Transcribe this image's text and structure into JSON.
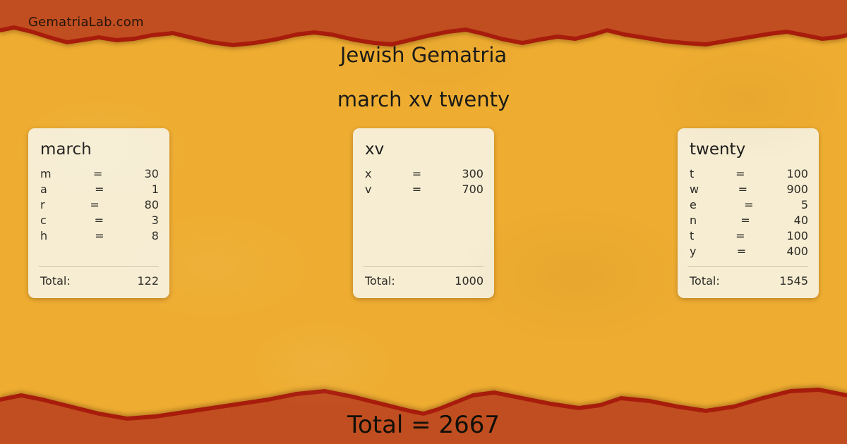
{
  "brand": {
    "label": "GematriaLab.com"
  },
  "header": {
    "system": "Jewish Gematria",
    "phrase": "march xv twenty"
  },
  "row_equals": "=",
  "cards": [
    {
      "word": "march",
      "rows": [
        {
          "letter": "m",
          "value": "30"
        },
        {
          "letter": "a",
          "value": "1"
        },
        {
          "letter": "r",
          "value": "80"
        },
        {
          "letter": "c",
          "value": "3"
        },
        {
          "letter": "h",
          "value": "8"
        }
      ],
      "total_label": "Total:",
      "total": "122"
    },
    {
      "word": "xv",
      "rows": [
        {
          "letter": "x",
          "value": "300"
        },
        {
          "letter": "v",
          "value": "700"
        }
      ],
      "total_label": "Total:",
      "total": "1000"
    },
    {
      "word": "twenty",
      "rows": [
        {
          "letter": "t",
          "value": "100"
        },
        {
          "letter": "w",
          "value": "900"
        },
        {
          "letter": "e",
          "value": "5"
        },
        {
          "letter": "n",
          "value": "40"
        },
        {
          "letter": "t",
          "value": "100"
        },
        {
          "letter": "y",
          "value": "400"
        }
      ],
      "total_label": "Total:",
      "total": "1545"
    }
  ],
  "footer": {
    "grand_total": "Total = 2667"
  },
  "colors": {
    "band": "#c14e20",
    "tear-line": "#a81c0c",
    "paper": "#eead31",
    "card": "#f6edd3",
    "card-text": "#2e2c26",
    "heading-text": "#1b1b18",
    "divider": "#cdc6b2",
    "brand-text": "#26150a"
  }
}
